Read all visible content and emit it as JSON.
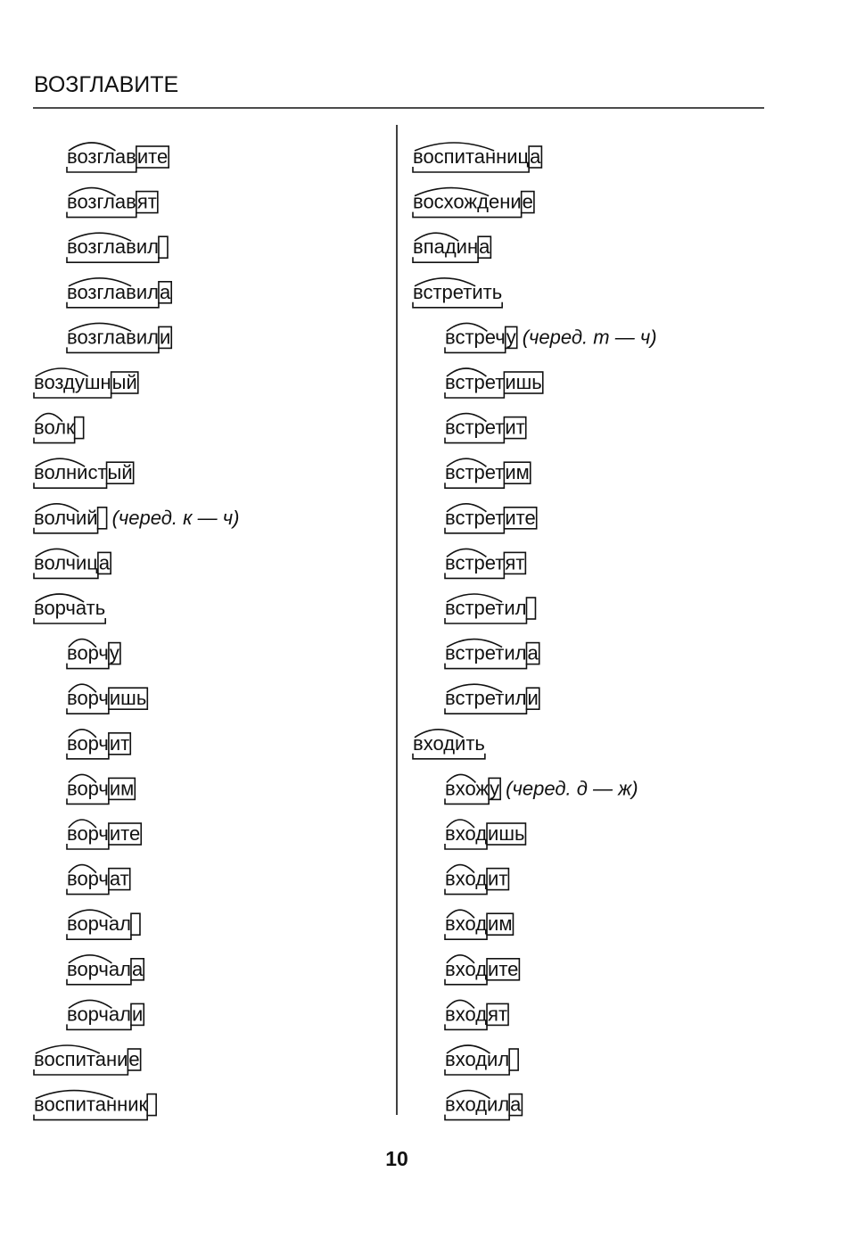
{
  "header": {
    "title": "ВОЗГЛАВИТЕ"
  },
  "columns": [
    {
      "entries": [
        {
          "stem": "возглав",
          "ending": "ите",
          "sub": true
        },
        {
          "stem": "возглав",
          "ending": "ят",
          "sub": true
        },
        {
          "stem": "возглавил",
          "ending": null,
          "sub": true
        },
        {
          "stem": "возглавил",
          "ending": "а",
          "sub": true
        },
        {
          "stem": "возглавил",
          "ending": "и",
          "sub": true
        },
        {
          "stem": "воздушн",
          "ending": "ый"
        },
        {
          "stem": "волк",
          "ending": null
        },
        {
          "stem": "волнист",
          "ending": "ый"
        },
        {
          "stem": "волчий",
          "ending": null,
          "note": "(черед. к — ч)"
        },
        {
          "stem": "волчиц",
          "ending": "а"
        },
        {
          "stem": "ворчать"
        },
        {
          "stem": "ворч",
          "ending": "у",
          "sub": true
        },
        {
          "stem": "ворч",
          "ending": "ишь",
          "sub": true
        },
        {
          "stem": "ворч",
          "ending": "ит",
          "sub": true
        },
        {
          "stem": "ворч",
          "ending": "им",
          "sub": true
        },
        {
          "stem": "ворч",
          "ending": "ите",
          "sub": true
        },
        {
          "stem": "ворч",
          "ending": "ат",
          "sub": true
        },
        {
          "stem": "ворчал",
          "ending": null,
          "sub": true
        },
        {
          "stem": "ворчал",
          "ending": "а",
          "sub": true
        },
        {
          "stem": "ворчал",
          "ending": "и",
          "sub": true
        },
        {
          "stem": "воспитани",
          "ending": "е"
        },
        {
          "stem": "воспитанник",
          "ending": null
        }
      ]
    },
    {
      "entries": [
        {
          "stem": "воспитанниц",
          "ending": "а"
        },
        {
          "stem": "восхождени",
          "ending": "е"
        },
        {
          "stem": "впадин",
          "ending": "а"
        },
        {
          "stem": "встретить"
        },
        {
          "stem": "встреч",
          "ending": "у",
          "note": "(черед. т — ч)",
          "sub": true
        },
        {
          "stem": "встрет",
          "ending": "ишь",
          "sub": true
        },
        {
          "stem": "встрет",
          "ending": "ит",
          "sub": true
        },
        {
          "stem": "встрет",
          "ending": "им",
          "sub": true
        },
        {
          "stem": "встрет",
          "ending": "ите",
          "sub": true
        },
        {
          "stem": "встрет",
          "ending": "ят",
          "sub": true
        },
        {
          "stem": "встретил",
          "ending": null,
          "sub": true
        },
        {
          "stem": "встретил",
          "ending": "а",
          "sub": true
        },
        {
          "stem": "встретил",
          "ending": "и",
          "sub": true
        },
        {
          "stem": "входить"
        },
        {
          "stem": "вхож",
          "ending": "у",
          "note": "(черед. д — ж)",
          "sub": true
        },
        {
          "stem": "вход",
          "ending": "ишь",
          "sub": true
        },
        {
          "stem": "вход",
          "ending": "ит",
          "sub": true
        },
        {
          "stem": "вход",
          "ending": "им",
          "sub": true
        },
        {
          "stem": "вход",
          "ending": "ите",
          "sub": true
        },
        {
          "stem": "вход",
          "ending": "ят",
          "sub": true
        },
        {
          "stem": "входил",
          "ending": null,
          "sub": true
        },
        {
          "stem": "входил",
          "ending": "а",
          "sub": true
        }
      ]
    }
  ],
  "page_number": "10"
}
